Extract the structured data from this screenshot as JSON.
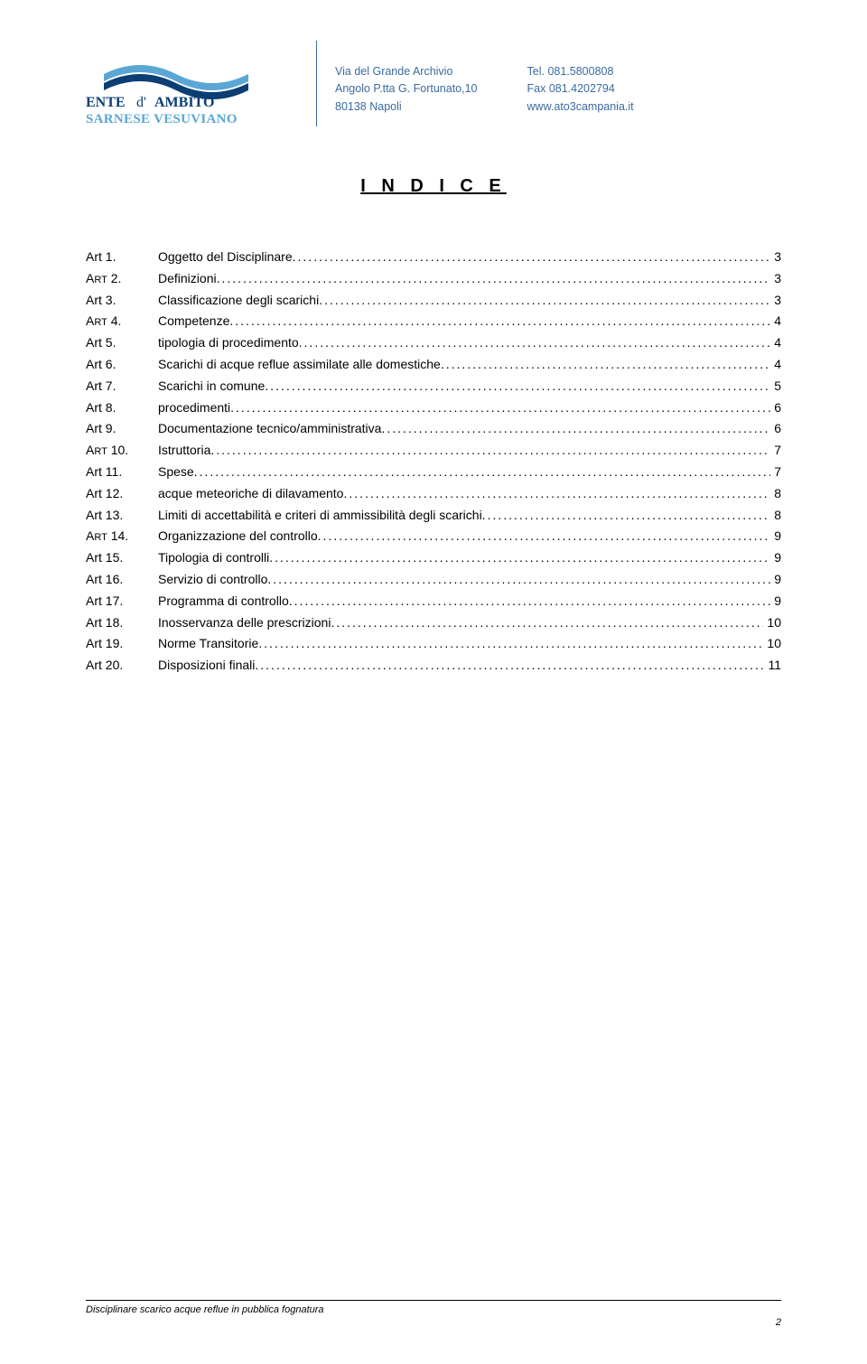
{
  "header": {
    "logo": {
      "line1": "ENTE d'AMBITO",
      "line2": "SARNESE VESUVIANO",
      "wave_color_dark": "#0b3e73",
      "wave_color_light": "#5aa7d6"
    },
    "address": {
      "line1": "Via del Grande Archivio",
      "line2": "Angolo P.tta  G. Fortunato,10",
      "line3": "80138 Napoli"
    },
    "contact": {
      "line1": "Tel. 081.5800808",
      "line2": "Fax 081.4202794",
      "line3": "www.ato3campania.it"
    },
    "text_color": "#3b6aa0"
  },
  "title": "I N D I C E",
  "toc": [
    {
      "art": "Art 1.",
      "smallcaps": false,
      "label": "Oggetto del Disciplinare",
      "page": "3"
    },
    {
      "art": "Art 2.",
      "smallcaps": true,
      "label": "Definizioni",
      "page": "3"
    },
    {
      "art": "Art 3.",
      "smallcaps": false,
      "label": "Classificazione degli scarichi",
      "page": "3"
    },
    {
      "art": "Art 4.",
      "smallcaps": true,
      "label": "Competenze",
      "page": "4"
    },
    {
      "art": "Art 5.",
      "smallcaps": false,
      "label": "tipologia di procedimento",
      "page": "4"
    },
    {
      "art": "Art 6.",
      "smallcaps": false,
      "label": "Scarichi di acque reflue assimilate alle domestiche",
      "page": "4"
    },
    {
      "art": "Art 7.",
      "smallcaps": false,
      "label": "Scarichi in comune",
      "page": "5"
    },
    {
      "art": "Art 8.",
      "smallcaps": false,
      "label": "procedimenti",
      "page": "6"
    },
    {
      "art": "Art 9.",
      "smallcaps": false,
      "label": "Documentazione tecnico/amministrativa",
      "page": "6"
    },
    {
      "art": "Art 10.",
      "smallcaps": true,
      "label": "Istruttoria",
      "page": "7"
    },
    {
      "art": "Art 11.",
      "smallcaps": false,
      "label": "Spese",
      "page": "7"
    },
    {
      "art": "Art 12.",
      "smallcaps": false,
      "label": "acque meteoriche di dilavamento",
      "page": "8"
    },
    {
      "art": "Art 13.",
      "smallcaps": false,
      "label": "Limiti di accettabilità e criteri di ammissibilità degli scarichi",
      "page": "8"
    },
    {
      "art": "Art 14.",
      "smallcaps": true,
      "label": "Organizzazione del controllo",
      "page": "9"
    },
    {
      "art": "Art 15.",
      "smallcaps": false,
      "label": "Tipologia di controlli",
      "page": "9"
    },
    {
      "art": "Art 16.",
      "smallcaps": false,
      "label": "Servizio di controllo",
      "page": "9"
    },
    {
      "art": "Art 17.",
      "smallcaps": false,
      "label": "Programma di controllo",
      "page": "9"
    },
    {
      "art": "Art 18.",
      "smallcaps": false,
      "label": "Inosservanza delle prescrizioni",
      "page": "10"
    },
    {
      "art": "Art 19.",
      "smallcaps": false,
      "label": "Norme Transitorie",
      "page": "10"
    },
    {
      "art": "Art 20.",
      "smallcaps": false,
      "label": "Disposizioni finali",
      "page": "11"
    }
  ],
  "footer": {
    "text": "Disciplinare scarico acque reflue in pubblica fognatura",
    "page_number": "2"
  }
}
